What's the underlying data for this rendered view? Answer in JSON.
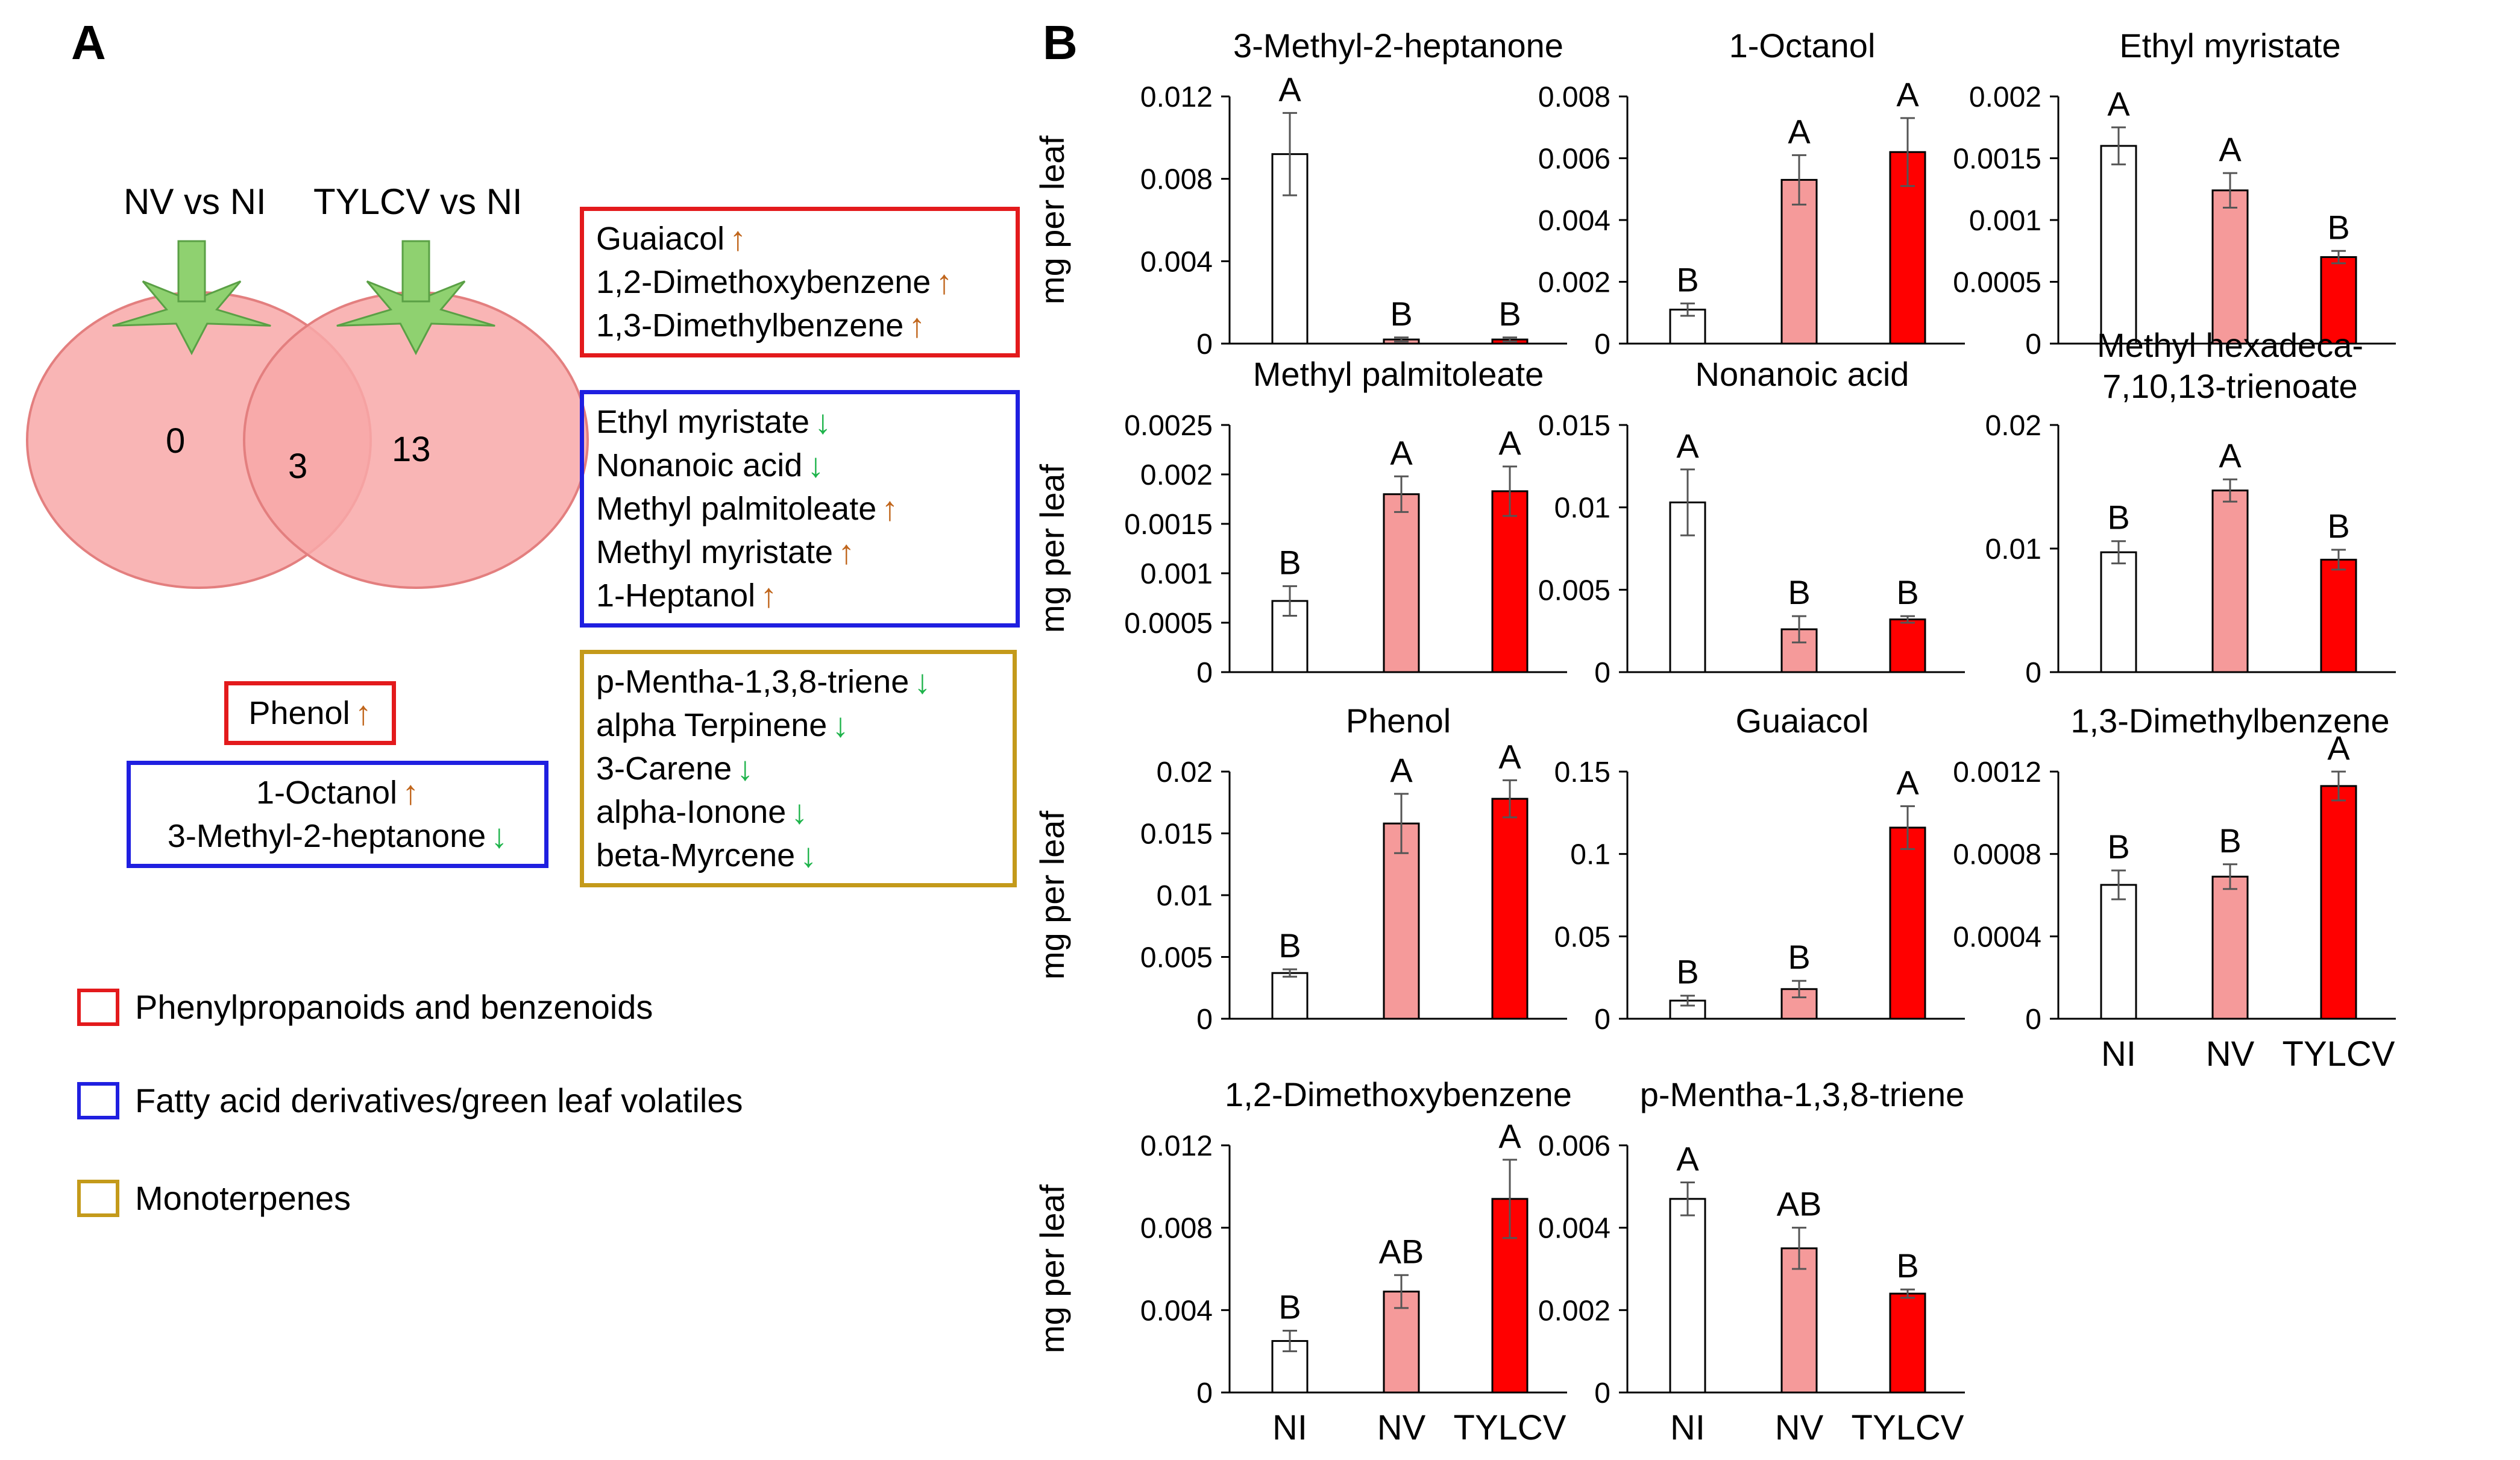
{
  "panel_a": {
    "letter": "A",
    "venn": {
      "left_label": "NV vs NI",
      "right_label": "TYLCV vs NI",
      "left_only": "0",
      "overlap": "3",
      "right_only": "13"
    },
    "right_boxes": [
      {
        "category": "phenylpropanoids",
        "color": "#e31a1c",
        "items": [
          {
            "name": "Guaiacol",
            "direction": "up"
          },
          {
            "name": "1,2-Dimethoxybenzene",
            "direction": "up"
          },
          {
            "name": "1,3-Dimethylbenzene",
            "direction": "up"
          }
        ]
      },
      {
        "category": "fatty_acid",
        "color": "#1f1fe0",
        "items": [
          {
            "name": "Ethyl myristate",
            "direction": "down"
          },
          {
            "name": "Nonanoic acid",
            "direction": "down"
          },
          {
            "name": "Methyl palmitoleate",
            "direction": "up"
          },
          {
            "name": "Methyl myristate",
            "direction": "up"
          },
          {
            "name": "1-Heptanol",
            "direction": "up"
          }
        ]
      },
      {
        "category": "monoterpenes",
        "color": "#c49a1a",
        "items": [
          {
            "name": "p-Mentha-1,3,8-triene",
            "direction": "down"
          },
          {
            "name": "alpha Terpinene",
            "direction": "down"
          },
          {
            "name": "3-Carene",
            "direction": "down"
          },
          {
            "name": "alpha-Ionone",
            "direction": "down"
          },
          {
            "name": "beta-Myrcene",
            "direction": "down"
          }
        ]
      }
    ],
    "overlap_boxes": [
      {
        "category": "phenylpropanoids",
        "color": "#e31a1c",
        "items": [
          {
            "name": "Phenol",
            "direction": "up"
          }
        ]
      },
      {
        "category": "fatty_acid",
        "color": "#1f1fe0",
        "items": [
          {
            "name": "1-Octanol",
            "direction": "up"
          },
          {
            "name": "3-Methyl-2-heptanone",
            "direction": "down"
          }
        ]
      }
    ],
    "legend": [
      {
        "label": "Phenylpropanoids and benzenoids",
        "color": "#e31a1c"
      },
      {
        "label": "Fatty acid derivatives/green leaf volatiles",
        "color": "#1f1fe0"
      },
      {
        "label": "Monoterpenes",
        "color": "#c49a1a"
      }
    ],
    "arrow_colors": {
      "up": "#c0651b",
      "down": "#1db34a"
    },
    "tomato_fill": "#f8a8a8",
    "tomato_stroke": "#e37f7f",
    "calyx_fill": "#8fd170"
  },
  "panel_b": {
    "letter": "B",
    "ylabel": "mg per leaf",
    "categories": [
      "NI",
      "NV",
      "TYLCV"
    ],
    "bar_colors": [
      "#ffffff",
      "#f59a9a",
      "#ff0000"
    ]
  },
  "chart_data": [
    {
      "type": "bar",
      "title": "3-Methyl-2-heptanone",
      "ylabel": "mg per leaf",
      "categories": [
        "NI",
        "NV",
        "TYLCV"
      ],
      "values": [
        0.0092,
        0.0002,
        0.0002
      ],
      "errors": [
        0.002,
        0.0001,
        0.0001
      ],
      "letters": [
        "A",
        "B",
        "B"
      ],
      "ylim": [
        0,
        0.012
      ],
      "yticks": [
        "0",
        "0.004",
        "0.008",
        "0.012"
      ]
    },
    {
      "type": "bar",
      "title": "1-Octanol",
      "categories": [
        "NI",
        "NV",
        "TYLCV"
      ],
      "values": [
        0.0011,
        0.0053,
        0.0062
      ],
      "errors": [
        0.0002,
        0.0008,
        0.0011
      ],
      "letters": [
        "B",
        "A",
        "A"
      ],
      "ylim": [
        0,
        0.008
      ],
      "yticks": [
        "0",
        "0.002",
        "0.004",
        "0.006",
        "0.008"
      ]
    },
    {
      "type": "bar",
      "title": "Ethyl myristate",
      "categories": [
        "NI",
        "NV",
        "TYLCV"
      ],
      "values": [
        0.0016,
        0.00124,
        0.0007
      ],
      "errors": [
        0.00015,
        0.00014,
        5e-05
      ],
      "letters": [
        "A",
        "A",
        "B"
      ],
      "ylim": [
        0,
        0.002
      ],
      "yticks": [
        "0",
        "0.0005",
        "0.001",
        "0.0015",
        "0.002"
      ]
    },
    {
      "type": "bar",
      "title": "Methyl palmitoleate",
      "ylabel": "mg per leaf",
      "categories": [
        "NI",
        "NV",
        "TYLCV"
      ],
      "values": [
        0.00072,
        0.0018,
        0.00183
      ],
      "errors": [
        0.00015,
        0.00018,
        0.00025
      ],
      "letters": [
        "B",
        "A",
        "A"
      ],
      "ylim": [
        0,
        0.0025
      ],
      "yticks": [
        "0",
        "0.0005",
        "0.001",
        "0.0015",
        "0.002",
        "0.0025"
      ]
    },
    {
      "type": "bar",
      "title": "Nonanoic acid",
      "categories": [
        "NI",
        "NV",
        "TYLCV"
      ],
      "values": [
        0.0103,
        0.0026,
        0.0032
      ],
      "errors": [
        0.002,
        0.0008,
        0.0002
      ],
      "letters": [
        "A",
        "B",
        "B"
      ],
      "ylim": [
        0,
        0.015
      ],
      "yticks": [
        "0",
        "0.005",
        "0.01",
        "0.015"
      ]
    },
    {
      "type": "bar",
      "title": "Methyl hexadeca-7,10,13-trienoate",
      "title_lines": [
        "Methyl hexadeca-",
        "7,10,13-trienoate"
      ],
      "categories": [
        "NI",
        "NV",
        "TYLCV"
      ],
      "values": [
        0.0097,
        0.0147,
        0.0091
      ],
      "errors": [
        0.0009,
        0.0009,
        0.0008
      ],
      "letters": [
        "B",
        "A",
        "B"
      ],
      "ylim": [
        0,
        0.02
      ],
      "yticks": [
        "0",
        "0.01",
        "0.02"
      ]
    },
    {
      "type": "bar",
      "title": "Phenol",
      "ylabel": "mg per leaf",
      "categories": [
        "NI",
        "NV",
        "TYLCV"
      ],
      "values": [
        0.0037,
        0.0158,
        0.0178
      ],
      "errors": [
        0.0003,
        0.0024,
        0.0015
      ],
      "letters": [
        "B",
        "A",
        "A"
      ],
      "ylim": [
        0,
        0.02
      ],
      "yticks": [
        "0",
        "0.005",
        "0.01",
        "0.015",
        "0.02"
      ]
    },
    {
      "type": "bar",
      "title": "Guaiacol",
      "categories": [
        "NI",
        "NV",
        "TYLCV"
      ],
      "values": [
        0.011,
        0.018,
        0.116
      ],
      "errors": [
        0.003,
        0.005,
        0.013
      ],
      "letters": [
        "B",
        "B",
        "A"
      ],
      "ylim": [
        0,
        0.15
      ],
      "yticks": [
        "0",
        "0.05",
        "0.1",
        "0.15"
      ]
    },
    {
      "type": "bar",
      "title": "1,3-Dimethylbenzene",
      "categories": [
        "NI",
        "NV",
        "TYLCV"
      ],
      "values": [
        0.00065,
        0.00069,
        0.00113
      ],
      "errors": [
        7e-05,
        6e-05,
        7e-05
      ],
      "letters": [
        "B",
        "B",
        "A"
      ],
      "ylim": [
        0,
        0.0012
      ],
      "yticks": [
        "0",
        "0.0004",
        "0.0008",
        "0.0012"
      ],
      "show_xticks": true
    },
    {
      "type": "bar",
      "title": "1,2-Dimethoxybenzene",
      "ylabel": "mg per leaf",
      "categories": [
        "NI",
        "NV",
        "TYLCV"
      ],
      "values": [
        0.0025,
        0.0049,
        0.0094
      ],
      "errors": [
        0.0005,
        0.0008,
        0.0019
      ],
      "letters": [
        "B",
        "AB",
        "A"
      ],
      "ylim": [
        0,
        0.012
      ],
      "yticks": [
        "0",
        "0.004",
        "0.008",
        "0.012"
      ],
      "show_xticks": true
    },
    {
      "type": "bar",
      "title": "p-Mentha-1,3,8-triene",
      "categories": [
        "NI",
        "NV",
        "TYLCV"
      ],
      "values": [
        0.0047,
        0.0035,
        0.0024
      ],
      "errors": [
        0.0004,
        0.0005,
        0.0001
      ],
      "letters": [
        "A",
        "AB",
        "B"
      ],
      "ylim": [
        0,
        0.006
      ],
      "yticks": [
        "0",
        "0.002",
        "0.004",
        "0.006"
      ],
      "show_xticks": true
    }
  ]
}
